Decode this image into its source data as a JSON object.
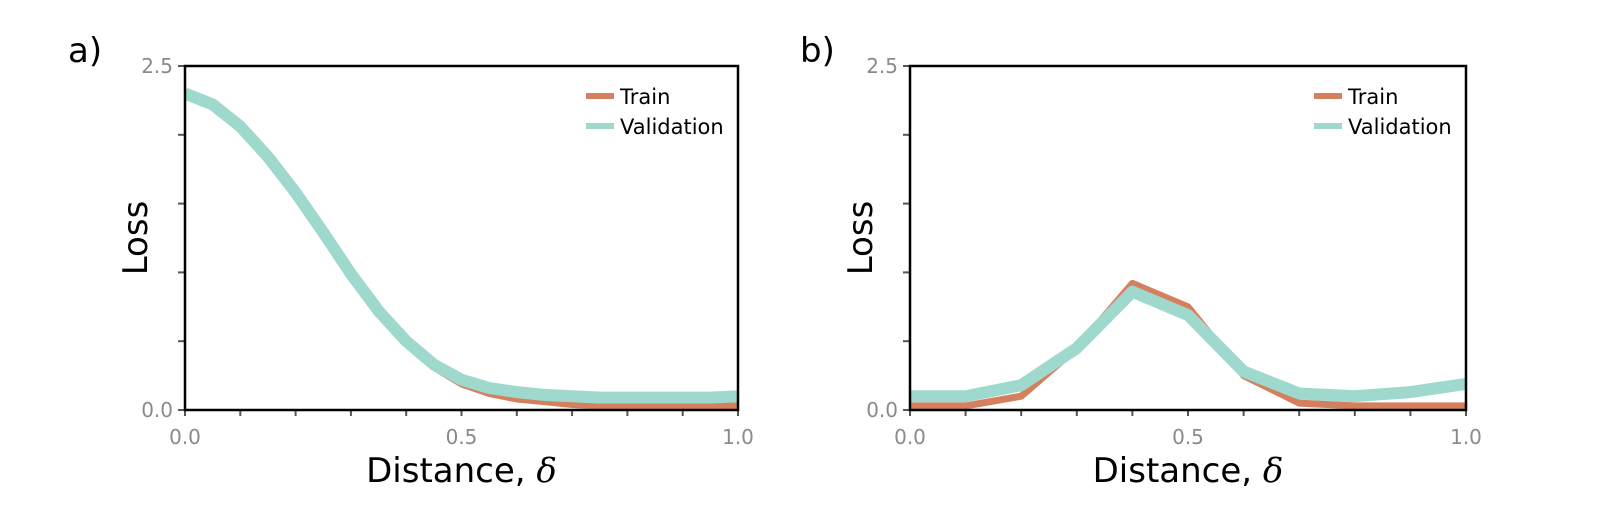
{
  "chart_data": [
    {
      "type": "line",
      "panel_label": "a)",
      "xlabel": "Distance, ",
      "xlabel_symbol": "δ",
      "ylabel": "Loss",
      "xlim": [
        0.0,
        1.0
      ],
      "ylim": [
        0.0,
        2.5
      ],
      "x_tick_labels": [
        "0.0",
        "0.5",
        "1.0"
      ],
      "y_tick_labels": [
        "0.0",
        "2.5"
      ],
      "legend_position": "top-right",
      "series": [
        {
          "name": "Train",
          "color": "#d4805f",
          "x": [
            0.0,
            0.05,
            0.1,
            0.15,
            0.2,
            0.25,
            0.3,
            0.35,
            0.4,
            0.45,
            0.5,
            0.55,
            0.6,
            0.65,
            0.7,
            0.75,
            0.8,
            0.85,
            0.9,
            0.95,
            1.0
          ],
          "values": [
            2.3,
            2.22,
            2.06,
            1.84,
            1.58,
            1.29,
            0.99,
            0.72,
            0.49,
            0.31,
            0.19,
            0.12,
            0.08,
            0.06,
            0.04,
            0.03,
            0.03,
            0.03,
            0.03,
            0.03,
            0.03
          ]
        },
        {
          "name": "Validation",
          "color": "#9fd9ce",
          "x": [
            0.0,
            0.05,
            0.1,
            0.15,
            0.2,
            0.25,
            0.3,
            0.35,
            0.4,
            0.45,
            0.5,
            0.55,
            0.6,
            0.65,
            0.7,
            0.75,
            0.8,
            0.85,
            0.9,
            0.95,
            1.0
          ],
          "values": [
            2.3,
            2.22,
            2.06,
            1.84,
            1.58,
            1.29,
            0.99,
            0.72,
            0.5,
            0.33,
            0.22,
            0.16,
            0.13,
            0.11,
            0.1,
            0.09,
            0.09,
            0.09,
            0.09,
            0.09,
            0.1
          ]
        }
      ]
    },
    {
      "type": "line",
      "panel_label": "b)",
      "xlabel": "Distance, ",
      "xlabel_symbol": "δ",
      "ylabel": "Loss",
      "xlim": [
        0.0,
        1.0
      ],
      "ylim": [
        0.0,
        2.5
      ],
      "x_tick_labels": [
        "0.0",
        "0.5",
        "1.0"
      ],
      "y_tick_labels": [
        "0.0",
        "2.5"
      ],
      "legend_position": "top-right",
      "series": [
        {
          "name": "Train",
          "color": "#d4805f",
          "x": [
            0.0,
            0.1,
            0.2,
            0.3,
            0.4,
            0.5,
            0.6,
            0.7,
            0.8,
            0.9,
            1.0
          ],
          "values": [
            0.03,
            0.03,
            0.1,
            0.45,
            0.92,
            0.75,
            0.25,
            0.05,
            0.03,
            0.03,
            0.03
          ]
        },
        {
          "name": "Validation",
          "color": "#9fd9ce",
          "x": [
            0.0,
            0.1,
            0.2,
            0.3,
            0.4,
            0.5,
            0.6,
            0.7,
            0.8,
            0.9,
            1.0
          ],
          "values": [
            0.1,
            0.1,
            0.18,
            0.45,
            0.86,
            0.69,
            0.28,
            0.12,
            0.1,
            0.13,
            0.19
          ]
        }
      ]
    }
  ]
}
